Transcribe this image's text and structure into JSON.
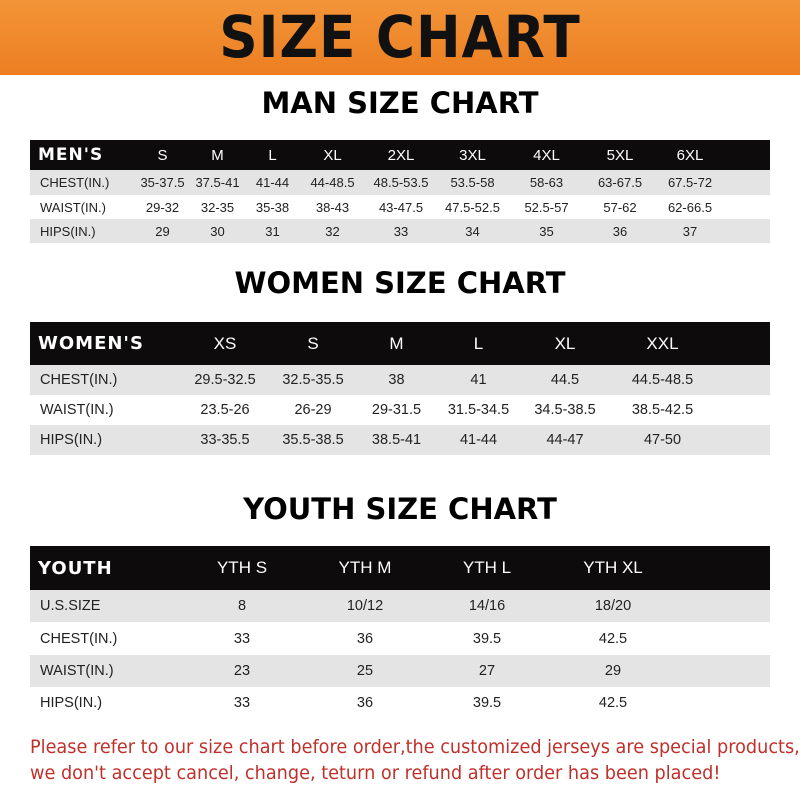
{
  "title": "SIZE CHART",
  "men": {
    "heading": "MAN SIZE CHART",
    "header": [
      "MEN'S",
      "S",
      "M",
      "L",
      "XL",
      "2XL",
      "3XL",
      "4XL",
      "5XL",
      "6XL"
    ],
    "rows": [
      [
        "CHEST(IN.)",
        "35-37.5",
        "37.5-41",
        "41-44",
        "44-48.5",
        "48.5-53.5",
        "53.5-58",
        "58-63",
        "63-67.5",
        "67.5-72"
      ],
      [
        "WAIST(IN.)",
        "29-32",
        "32-35",
        "35-38",
        "38-43",
        "43-47.5",
        "47.5-52.5",
        "52.5-57",
        "57-62",
        "62-66.5"
      ],
      [
        "HIPS(IN.)",
        "29",
        "30",
        "31",
        "32",
        "33",
        "34",
        "35",
        "36",
        "37"
      ]
    ]
  },
  "women": {
    "heading": "WOMEN SIZE CHART",
    "header": [
      "WOMEN'S",
      "XS",
      "S",
      "M",
      "L",
      "XL",
      "XXL"
    ],
    "rows": [
      [
        "CHEST(IN.)",
        "29.5-32.5",
        "32.5-35.5",
        "38",
        "41",
        "44.5",
        "44.5-48.5"
      ],
      [
        "WAIST(IN.)",
        "23.5-26",
        "26-29",
        "29-31.5",
        "31.5-34.5",
        "34.5-38.5",
        "38.5-42.5"
      ],
      [
        "HIPS(IN.)",
        "33-35.5",
        "35.5-38.5",
        "38.5-41",
        "41-44",
        "44-47",
        "47-50"
      ]
    ]
  },
  "youth": {
    "heading": "YOUTH SIZE CHART",
    "header": [
      "YOUTH",
      "YTH S",
      "YTH M",
      "YTH L",
      "YTH XL"
    ],
    "rows": [
      [
        "U.S.SIZE",
        "8",
        "10/12",
        "14/16",
        "18/20"
      ],
      [
        "CHEST(IN.)",
        "33",
        "36",
        "39.5",
        "42.5"
      ],
      [
        "WAIST(IN.)",
        "23",
        "25",
        "27",
        "29"
      ],
      [
        "HIPS(IN.)",
        "33",
        "36",
        "39.5",
        "42.5"
      ]
    ]
  },
  "notice": [
    "Please refer to our size chart before order,the customized jerseys are special products,",
    "we don't accept cancel, change, teturn or refund after order has been placed!"
  ],
  "colors": {
    "banner": "#f08a2c",
    "header_row": "#0d0b0b",
    "notice": "#c0302a"
  }
}
